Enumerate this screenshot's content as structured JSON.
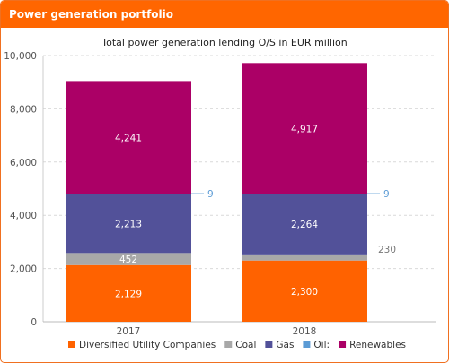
{
  "header": {
    "title": "Power generation portfolio"
  },
  "colors": {
    "header_bg": "#ff6600",
    "diversified": "#ff6200",
    "coal": "#a8a8a8",
    "gas": "#525199",
    "oil": "#5b9bd5",
    "renewables": "#ab0066",
    "axis_text": "#555555",
    "gridline": "#d9d9d9"
  },
  "chart_data": {
    "type": "bar",
    "stacked": true,
    "title": "Total power generation lending O/S in EUR million",
    "categories": [
      "2017",
      "2018"
    ],
    "ylim": [
      0,
      10000
    ],
    "yticks": [
      0,
      2000,
      4000,
      6000,
      8000,
      10000
    ],
    "ytick_labels": [
      "0",
      "2,000",
      "4,000",
      "6,000",
      "8,000",
      "10,000"
    ],
    "grid": "horizontal dashed",
    "legend_position": "bottom",
    "series": [
      {
        "name": "Diversified Utility Companies",
        "color_key": "diversified",
        "values": [
          2129,
          2300
        ],
        "labels": [
          "2,129",
          "2,300"
        ]
      },
      {
        "name": "Coal",
        "color_key": "coal",
        "values": [
          452,
          230
        ],
        "labels": [
          "452",
          "230"
        ]
      },
      {
        "name": "Gas",
        "color_key": "gas",
        "values": [
          2213,
          2264
        ],
        "labels": [
          "2,213",
          "2,264"
        ]
      },
      {
        "name": "Oil:",
        "color_key": "oil",
        "values": [
          9,
          9
        ],
        "labels": [
          "9",
          "9"
        ]
      },
      {
        "name": "Renewables",
        "color_key": "renewables",
        "values": [
          4241,
          4917
        ],
        "labels": [
          "4,241",
          "4,917"
        ]
      }
    ]
  }
}
